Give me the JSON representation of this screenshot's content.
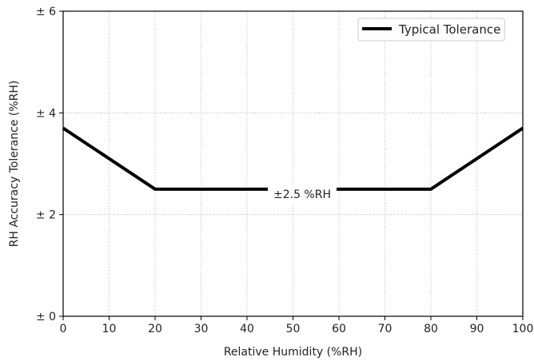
{
  "chart_data": {
    "type": "line",
    "xlabel": "Relative Humidity (%RH)",
    "ylabel": "RH Accuracy Tolerance (%RH)",
    "xlim": [
      0,
      100
    ],
    "ylim": [
      0,
      6
    ],
    "x_ticks": [
      0,
      10,
      20,
      30,
      40,
      50,
      60,
      70,
      80,
      90,
      100
    ],
    "y_ticks": [
      0,
      2,
      4,
      6
    ],
    "y_tick_labels": [
      "± 0",
      "± 2",
      "± 4",
      "± 6"
    ],
    "grid": true,
    "legend_position": "top-right",
    "series": [
      {
        "name": "Typical Tolerance",
        "color": "#000000",
        "x": [
          0,
          20,
          80,
          100
        ],
        "y": [
          3.7,
          2.5,
          2.5,
          3.7
        ]
      }
    ],
    "annotations": [
      {
        "text": "±2.5 %RH",
        "x": 52,
        "y": 2.2
      }
    ]
  }
}
